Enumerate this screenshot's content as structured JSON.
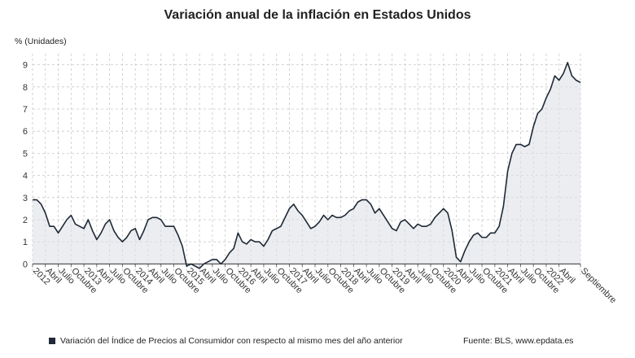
{
  "chart_data": {
    "type": "area",
    "title": "Variación anual de la inflación en Estados Unidos",
    "ylabel": "% (Unidades)",
    "ylim": [
      -0.5,
      9.5
    ],
    "yticks": [
      0,
      1,
      2,
      3,
      4,
      5,
      6,
      7,
      8,
      9
    ],
    "xtick_labels": [
      "2012",
      "Abril",
      "Julio",
      "Octubre",
      "2013",
      "Abril",
      "Julio",
      "Octubre",
      "2014",
      "Abril",
      "Julio",
      "Octubre",
      "2015",
      "Abril",
      "Julio",
      "Octubre",
      "2016",
      "Abril",
      "Julio",
      "Octubre",
      "2017",
      "Abril",
      "Julio",
      "Octubre",
      "2018",
      "Abril",
      "Julio",
      "Octubre",
      "2019",
      "Abril",
      "Julio",
      "Octubre",
      "2020",
      "Abril",
      "Julio",
      "Octubre",
      "2021",
      "Abril",
      "Julio",
      "Octubre",
      "2022",
      "Abril",
      "Septiembre"
    ],
    "start": "2012-01",
    "end": "2022-09",
    "series": [
      {
        "name": "Variación del Índice de Precios al Consumidor con respecto al mismo mes del año anterior",
        "color": "#1f2937",
        "values": [
          2.9,
          2.9,
          2.7,
          2.3,
          1.7,
          1.7,
          1.4,
          1.7,
          2.0,
          2.2,
          1.8,
          1.7,
          1.6,
          2.0,
          1.5,
          1.1,
          1.4,
          1.8,
          2.0,
          1.5,
          1.2,
          1.0,
          1.2,
          1.5,
          1.6,
          1.1,
          1.5,
          2.0,
          2.1,
          2.1,
          2.0,
          1.7,
          1.7,
          1.7,
          1.3,
          0.8,
          -0.1,
          0.0,
          -0.1,
          -0.2,
          0.0,
          0.1,
          0.2,
          0.2,
          0.0,
          0.2,
          0.5,
          0.7,
          1.4,
          1.0,
          0.9,
          1.1,
          1.0,
          1.0,
          0.8,
          1.1,
          1.5,
          1.6,
          1.7,
          2.1,
          2.5,
          2.7,
          2.4,
          2.2,
          1.9,
          1.6,
          1.7,
          1.9,
          2.2,
          2.0,
          2.2,
          2.1,
          2.1,
          2.2,
          2.4,
          2.5,
          2.8,
          2.9,
          2.9,
          2.7,
          2.3,
          2.5,
          2.2,
          1.9,
          1.6,
          1.5,
          1.9,
          2.0,
          1.8,
          1.6,
          1.8,
          1.7,
          1.7,
          1.8,
          2.1,
          2.3,
          2.5,
          2.3,
          1.5,
          0.3,
          0.1,
          0.6,
          1.0,
          1.3,
          1.4,
          1.2,
          1.2,
          1.4,
          1.4,
          1.7,
          2.6,
          4.2,
          5.0,
          5.4,
          5.4,
          5.3,
          5.4,
          6.2,
          6.8,
          7.0,
          7.5,
          7.9,
          8.5,
          8.3,
          8.6,
          9.1,
          8.5,
          8.3,
          8.2
        ]
      }
    ],
    "grid": true,
    "legend_position": "bottom-left"
  },
  "source": "Fuente: BLS, www.epdata.es"
}
